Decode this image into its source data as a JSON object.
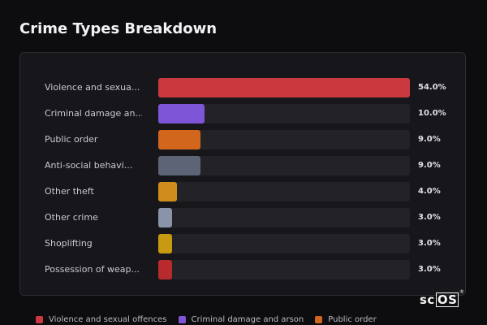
{
  "title": "Crime Types Breakdown",
  "chart_data": {
    "type": "bar",
    "orientation": "horizontal",
    "title": "Crime Types Breakdown",
    "xlim": [
      0,
      54
    ],
    "categories": [
      "Violence and sexua...",
      "Criminal damage an...",
      "Public order",
      "Anti-social behavi...",
      "Other theft",
      "Other crime",
      "Shoplifting",
      "Possession of weap..."
    ],
    "values": [
      54.0,
      10.0,
      9.0,
      9.0,
      4.0,
      3.0,
      3.0,
      3.0
    ],
    "value_labels": [
      "54.0%",
      "10.0%",
      "9.0%",
      "9.0%",
      "4.0%",
      "3.0%",
      "3.0%",
      "3.0%"
    ],
    "colors": [
      "#c9393e",
      "#7e55d6",
      "#d2661c",
      "#5c6475",
      "#d18d1b",
      "#8a93a8",
      "#c89a12",
      "#b82a2c"
    ],
    "legend": [
      {
        "label": "Violence and sexual offences",
        "color": "#c9393e"
      },
      {
        "label": "Criminal damage and arson",
        "color": "#7e55d6"
      },
      {
        "label": "Public order",
        "color": "#d2661c"
      }
    ],
    "legend_position": "bottom"
  },
  "logo": {
    "prefix": "sc",
    "boxed": "OS",
    "reg": "®"
  }
}
